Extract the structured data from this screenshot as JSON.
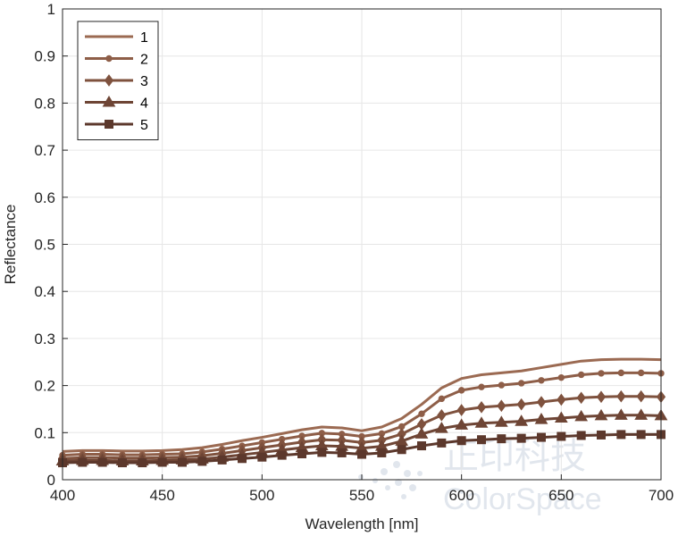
{
  "chart_data": {
    "type": "line",
    "title": "",
    "xlabel": "Wavelength [nm]",
    "ylabel": "Reflectance",
    "xlim": [
      400,
      700
    ],
    "ylim": [
      0,
      1
    ],
    "grid": true,
    "legend_position": "top-left",
    "x_ticks": [
      400,
      450,
      500,
      550,
      600,
      650,
      700
    ],
    "y_ticks": [
      0,
      0.1,
      0.2,
      0.3,
      0.4,
      0.5,
      0.6,
      0.7,
      0.8,
      0.9,
      1
    ],
    "x_tick_labels": [
      "400",
      "450",
      "500",
      "550",
      "600",
      "650",
      "700"
    ],
    "y_tick_labels": [
      "0",
      "0.1",
      "0.2",
      "0.3",
      "0.4",
      "0.5",
      "0.6",
      "0.7",
      "0.8",
      "0.9",
      "1"
    ],
    "x": [
      400,
      410,
      420,
      430,
      440,
      450,
      460,
      470,
      480,
      490,
      500,
      510,
      520,
      530,
      540,
      550,
      560,
      570,
      580,
      590,
      600,
      610,
      620,
      630,
      640,
      650,
      660,
      670,
      680,
      690,
      700
    ],
    "series": [
      {
        "name": "1",
        "marker": "none",
        "color": "#9b6a52",
        "values": [
          0.06,
          0.062,
          0.062,
          0.061,
          0.061,
          0.062,
          0.064,
          0.068,
          0.075,
          0.083,
          0.09,
          0.098,
          0.106,
          0.112,
          0.11,
          0.104,
          0.112,
          0.13,
          0.16,
          0.195,
          0.215,
          0.223,
          0.227,
          0.231,
          0.238,
          0.245,
          0.252,
          0.255,
          0.256,
          0.256,
          0.255
        ]
      },
      {
        "name": "2",
        "marker": "circle",
        "color": "#8e5e48",
        "values": [
          0.052,
          0.054,
          0.054,
          0.053,
          0.053,
          0.054,
          0.055,
          0.059,
          0.065,
          0.072,
          0.079,
          0.086,
          0.093,
          0.099,
          0.097,
          0.092,
          0.098,
          0.113,
          0.14,
          0.172,
          0.19,
          0.197,
          0.201,
          0.205,
          0.211,
          0.217,
          0.223,
          0.226,
          0.227,
          0.227,
          0.226
        ]
      },
      {
        "name": "3",
        "marker": "diamond",
        "color": "#7f523e",
        "values": [
          0.045,
          0.047,
          0.047,
          0.046,
          0.046,
          0.047,
          0.048,
          0.051,
          0.056,
          0.062,
          0.068,
          0.074,
          0.08,
          0.085,
          0.084,
          0.079,
          0.084,
          0.097,
          0.118,
          0.137,
          0.148,
          0.154,
          0.157,
          0.16,
          0.165,
          0.17,
          0.174,
          0.176,
          0.177,
          0.177,
          0.176
        ]
      },
      {
        "name": "4",
        "marker": "triangle",
        "color": "#6e4535",
        "values": [
          0.04,
          0.041,
          0.041,
          0.04,
          0.04,
          0.041,
          0.042,
          0.044,
          0.048,
          0.053,
          0.058,
          0.063,
          0.068,
          0.072,
          0.071,
          0.067,
          0.071,
          0.082,
          0.097,
          0.109,
          0.116,
          0.12,
          0.122,
          0.124,
          0.128,
          0.131,
          0.134,
          0.136,
          0.137,
          0.137,
          0.136
        ]
      },
      {
        "name": "5",
        "marker": "square",
        "color": "#5c382c",
        "values": [
          0.036,
          0.037,
          0.037,
          0.036,
          0.036,
          0.037,
          0.037,
          0.039,
          0.042,
          0.045,
          0.048,
          0.052,
          0.055,
          0.058,
          0.057,
          0.054,
          0.057,
          0.064,
          0.072,
          0.078,
          0.083,
          0.085,
          0.087,
          0.088,
          0.09,
          0.092,
          0.094,
          0.095,
          0.096,
          0.096,
          0.096
        ]
      }
    ]
  },
  "watermark": {
    "text_cn": "正印科技",
    "text_en": "ColorSpace"
  }
}
